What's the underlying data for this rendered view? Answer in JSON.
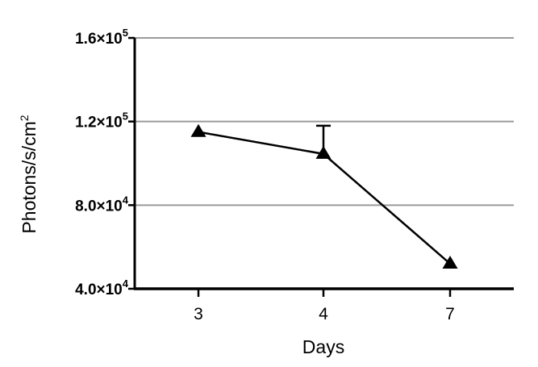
{
  "chart_data": {
    "type": "line",
    "xlabel": "Days",
    "ylabel_main": "Photons/s/cm",
    "ylabel_sup": "2",
    "categories": [
      "3",
      "4",
      "7"
    ],
    "series": [
      {
        "values": [
          115000,
          104500,
          52000
        ],
        "error_upper": [
          null,
          118000,
          null
        ],
        "marker": "triangle-up",
        "color": "#000000"
      }
    ],
    "ylim": [
      40000,
      160000
    ],
    "yticks": [
      {
        "value": 40000,
        "mantissa": "4.0",
        "exponent": "4"
      },
      {
        "value": 80000,
        "mantissa": "8.0",
        "exponent": "4"
      },
      {
        "value": 120000,
        "mantissa": "1.2",
        "exponent": "5"
      },
      {
        "value": 160000,
        "mantissa": "1.6",
        "exponent": "5"
      }
    ],
    "times_symbol": "×10",
    "grid": "horizontal",
    "grid_color": "#9a9a9a"
  }
}
